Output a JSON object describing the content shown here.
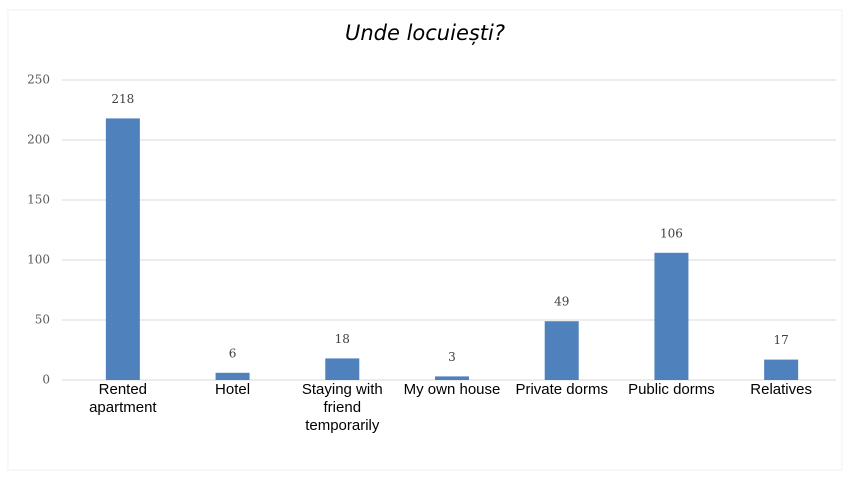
{
  "chart_data": {
    "type": "bar",
    "title": "Unde locuiești?",
    "categories": [
      "Rented apartment",
      "Hotel",
      "Staying with friend temporarily",
      "My own house",
      "Private dorms",
      "Public dorms",
      "Relatives"
    ],
    "values": [
      218,
      6,
      18,
      3,
      49,
      106,
      17
    ],
    "color": "#4f81bd",
    "ylim": [
      0,
      250
    ],
    "yticks": [
      0,
      50,
      100,
      150,
      200,
      250
    ],
    "grid": true
  }
}
